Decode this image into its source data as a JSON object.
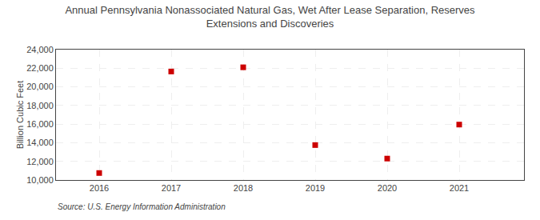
{
  "chart_data": {
    "type": "scatter",
    "title": "Annual Pennsylvania Nonassociated Natural Gas, Wet After Lease Separation, Reserves\nExtensions and Discoveries",
    "ylabel": "Billion Cubic Feet",
    "annotations": [
      "Source: U.S. Energy Information Administration"
    ],
    "x": [
      2016,
      2017,
      2018,
      2019,
      2020,
      2021
    ],
    "values": [
      10750,
      21650,
      22100,
      13750,
      12300,
      15950
    ],
    "color": "#cc0000",
    "marker": "square",
    "xlim": [
      2015.4,
      2021.9
    ],
    "xticks": [
      2016,
      2017,
      2018,
      2019,
      2020,
      2021
    ],
    "ylim": [
      10000,
      24000
    ],
    "yticks": [
      {
        "value": 10000,
        "label": "10,000"
      },
      {
        "value": 12000,
        "label": "12,000"
      },
      {
        "value": 14000,
        "label": "14,000"
      },
      {
        "value": 16000,
        "label": "16,000"
      },
      {
        "value": 18000,
        "label": "18,000"
      },
      {
        "value": 20000,
        "label": "20,000"
      },
      {
        "value": 22000,
        "label": "22,000"
      },
      {
        "value": 24000,
        "label": "24,000"
      }
    ],
    "grid": true
  }
}
